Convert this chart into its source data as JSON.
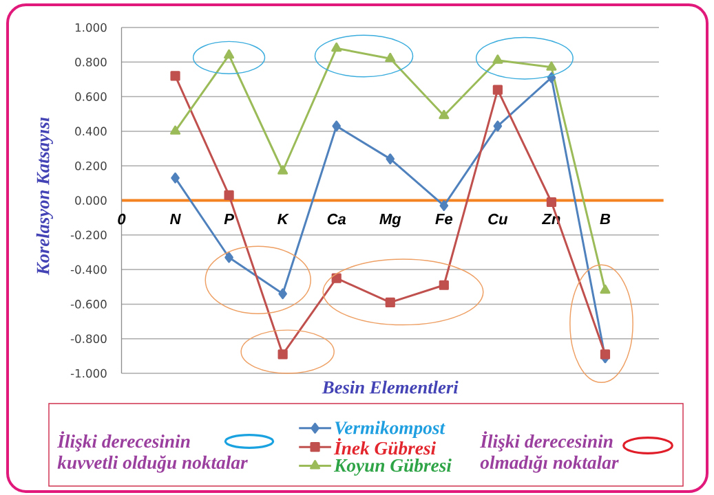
{
  "chart_data": {
    "type": "line",
    "xlabel": "Besin Elementleri",
    "ylabel": "Korelasyon Katsayısı",
    "categories": [
      "0",
      "N",
      "P",
      "K",
      "Ca",
      "Mg",
      "Fe",
      "Cu",
      "Zn",
      "B"
    ],
    "ylim": [
      -1,
      1
    ],
    "yticks": [
      {
        "value": -1,
        "label": "-1.000"
      },
      {
        "value": -0.8,
        "label": "-0.800"
      },
      {
        "value": -0.6,
        "label": "-0.600"
      },
      {
        "value": -0.4,
        "label": "-0.400"
      },
      {
        "value": -0.2,
        "label": "-0.200"
      },
      {
        "value": 0,
        "label": "0.000"
      },
      {
        "value": 0.2,
        "label": "0.200"
      },
      {
        "value": 0.4,
        "label": "0.400"
      },
      {
        "value": 0.6,
        "label": "0.600"
      },
      {
        "value": 0.8,
        "label": "0.800"
      },
      {
        "value": 1,
        "label": "1.000"
      }
    ],
    "series": [
      {
        "name": "Vermikompost",
        "color": "#4f81bd",
        "marker": "diamond",
        "values": [
          null,
          0.13,
          -0.33,
          -0.54,
          0.43,
          0.24,
          -0.03,
          0.43,
          0.71,
          -0.91
        ]
      },
      {
        "name": "İnek Gübresi",
        "color": "#c0504d",
        "marker": "square",
        "values": [
          null,
          0.72,
          0.03,
          -0.89,
          -0.45,
          -0.59,
          -0.49,
          0.64,
          -0.01,
          -0.89
        ]
      },
      {
        "name": "Koyun Gübresi",
        "color": "#9bbb59",
        "marker": "triangle",
        "values": [
          null,
          0.4,
          0.84,
          0.17,
          0.88,
          0.82,
          0.49,
          0.81,
          0.77,
          -0.52
        ]
      }
    ],
    "grid": "y",
    "legend": "bottom",
    "line_style": "solid",
    "annotations": [
      "İlişki derecesinin",
      "kuvvetli olduğu noktalar",
      "İlişki derecesinin",
      "olmadığı noktalar"
    ]
  }
}
